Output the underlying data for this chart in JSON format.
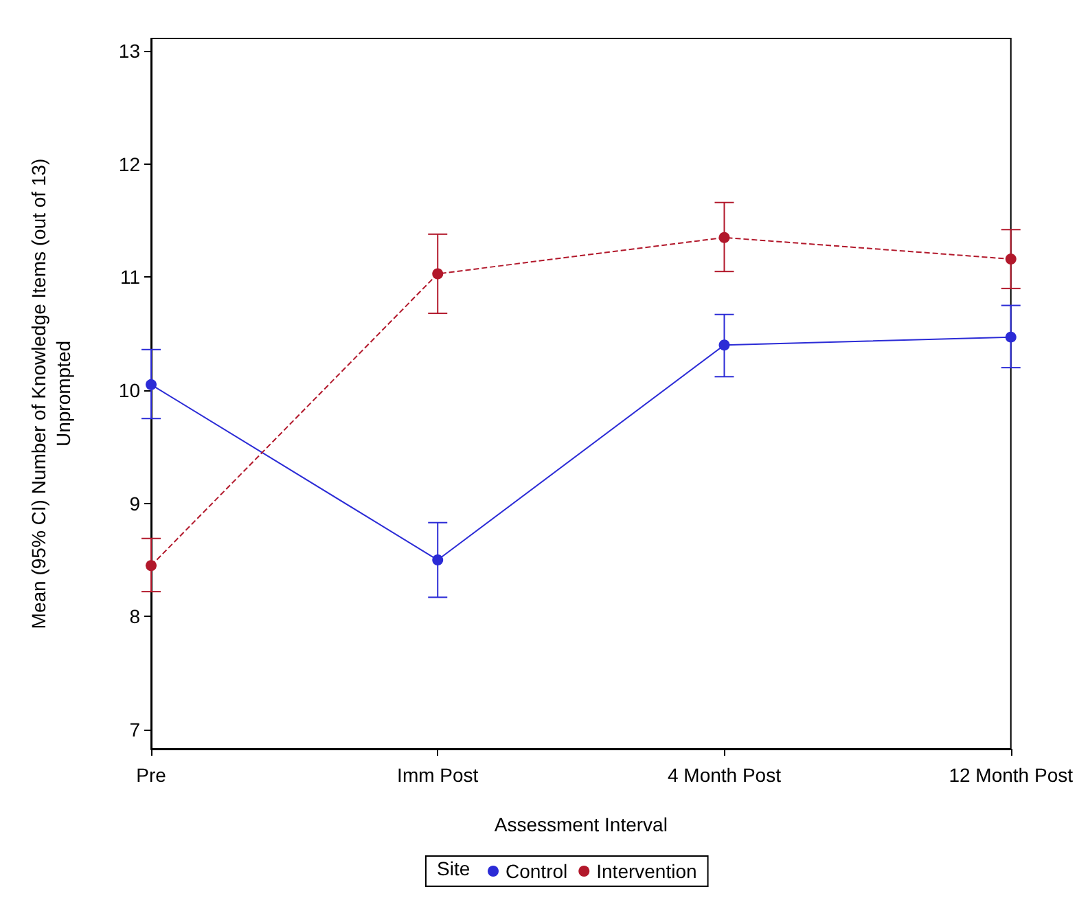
{
  "chart_data": {
    "type": "line",
    "xlabel": "Assessment Interval",
    "ylabel": "Mean (95% CI) Number of Knowledge Items (out of 13)\nUnprompted",
    "categories": [
      "Pre",
      "Imm Post",
      "4 Month Post",
      "12 Month Post"
    ],
    "series": [
      {
        "name": "Control",
        "color": "#2b2bd6",
        "line_style": "solid",
        "values": [
          10.05,
          8.5,
          10.4,
          10.47
        ],
        "errors": [
          [
            9.75,
            10.36
          ],
          [
            8.17,
            8.83
          ],
          [
            10.12,
            10.67
          ],
          [
            10.2,
            10.75
          ]
        ]
      },
      {
        "name": "Intervention",
        "color": "#b2182b",
        "line_style": "dashed",
        "values": [
          8.45,
          11.03,
          11.35,
          11.16
        ],
        "errors": [
          [
            8.22,
            8.69
          ],
          [
            10.68,
            11.38
          ],
          [
            11.05,
            11.66
          ],
          [
            10.9,
            11.42
          ]
        ]
      }
    ],
    "ylim": [
      6.83,
      13.11
    ],
    "yticks": [
      7,
      8,
      9,
      10,
      11,
      12,
      13
    ],
    "grid": false,
    "legend": "bottom",
    "legend_title": "Site",
    "marker": "circle"
  }
}
